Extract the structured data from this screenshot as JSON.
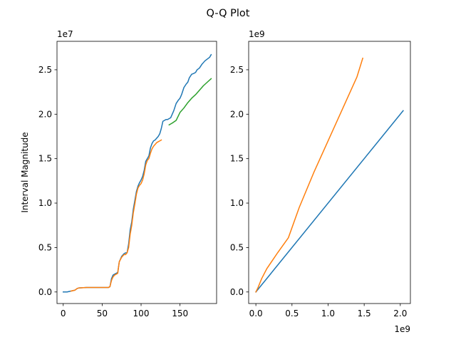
{
  "figure": {
    "title": "Q-Q Plot"
  },
  "colors": {
    "blue": "#1f77b4",
    "orange": "#ff7f0e",
    "green": "#2ca02c"
  },
  "chart_data": [
    {
      "type": "line",
      "ylabel": "Interval Magnitude",
      "xlabel": "",
      "y_offset_label": "1e7",
      "x_offset_label": "",
      "xlim": [
        -8,
        197
      ],
      "ylim": [
        -1.3,
        28.2
      ],
      "xticks": [
        0,
        50,
        100,
        150
      ],
      "xtick_labels": [
        "0",
        "50",
        "100",
        "150"
      ],
      "yticks": [
        0,
        5,
        10,
        15,
        20,
        25
      ],
      "ytick_labels": [
        "0.0",
        "0.5",
        "1.0",
        "1.5",
        "2.0",
        "2.5"
      ],
      "series": [
        {
          "color": "blue",
          "x": [
            0,
            5,
            10,
            15,
            18,
            20,
            30,
            40,
            50,
            58,
            60,
            62,
            64,
            66,
            70,
            72,
            75,
            78,
            80,
            82,
            84,
            86,
            88,
            90,
            92,
            94,
            96,
            98,
            100,
            102,
            104,
            106,
            108,
            110,
            112,
            114,
            116,
            118,
            120,
            122,
            124,
            126,
            128,
            130,
            132,
            134,
            136,
            138,
            140,
            142,
            145,
            148,
            150,
            152,
            155,
            158,
            160,
            162,
            165,
            168,
            170,
            172,
            175,
            178,
            180,
            182,
            185,
            188,
            190
          ],
          "y": [
            0.0,
            0.0,
            0.1,
            0.2,
            0.4,
            0.45,
            0.5,
            0.5,
            0.5,
            0.5,
            0.6,
            1.5,
            1.9,
            2.0,
            2.2,
            3.4,
            4.0,
            4.3,
            4.4,
            4.4,
            5.4,
            7.0,
            7.9,
            9.3,
            10.3,
            11.3,
            11.9,
            12.3,
            12.6,
            13.0,
            13.7,
            14.7,
            15.0,
            15.3,
            16.2,
            16.7,
            17.0,
            17.1,
            17.3,
            17.5,
            17.8,
            18.4,
            19.2,
            19.3,
            19.4,
            19.4,
            19.5,
            19.6,
            20.0,
            20.4,
            21.2,
            21.6,
            21.8,
            22.2,
            23.0,
            23.4,
            23.6,
            24.1,
            24.5,
            24.6,
            24.7,
            25.0,
            25.2,
            25.6,
            25.8,
            26.0,
            26.2,
            26.4,
            26.7
          ]
        },
        {
          "color": "orange",
          "x": [
            10,
            15,
            18,
            20,
            30,
            40,
            50,
            58,
            60,
            62,
            64,
            66,
            70,
            72,
            75,
            78,
            80,
            82,
            84,
            86,
            88,
            90,
            92,
            94,
            96,
            98,
            100,
            102,
            104,
            106,
            108,
            110,
            112,
            114,
            116,
            118,
            120,
            122,
            124,
            126
          ],
          "y": [
            0.1,
            0.2,
            0.4,
            0.45,
            0.5,
            0.5,
            0.5,
            0.5,
            0.6,
            1.3,
            1.7,
            1.9,
            2.1,
            3.4,
            3.9,
            4.2,
            4.2,
            4.4,
            5.0,
            6.5,
            7.5,
            8.9,
            9.9,
            11.0,
            11.7,
            12.0,
            12.2,
            12.6,
            13.3,
            14.3,
            14.8,
            15.0,
            15.6,
            16.1,
            16.4,
            16.6,
            16.8,
            16.9,
            17.0,
            17.1
          ]
        },
        {
          "color": "green",
          "x": [
            136,
            140,
            145,
            150,
            155,
            160,
            165,
            170,
            175,
            180,
            185,
            190
          ],
          "y": [
            18.8,
            19.0,
            19.3,
            20.2,
            20.7,
            21.3,
            21.8,
            22.2,
            22.7,
            23.2,
            23.6,
            24.0
          ]
        }
      ]
    },
    {
      "type": "line",
      "ylabel": "",
      "xlabel": "",
      "y_offset_label": "1e9",
      "x_offset_label": "1e9",
      "xlim": [
        -0.1,
        2.14
      ],
      "ylim": [
        -0.13,
        2.82
      ],
      "xticks": [
        0,
        0.5,
        1.0,
        1.5,
        2.0
      ],
      "xtick_labels": [
        "0.0",
        "0.5",
        "1.0",
        "1.5",
        "2.0"
      ],
      "yticks": [
        0,
        0.5,
        1.0,
        1.5,
        2.0,
        2.5
      ],
      "ytick_labels": [
        "0.0",
        "0.5",
        "1.0",
        "1.5",
        "2.0",
        "2.5"
      ],
      "series": [
        {
          "color": "blue",
          "x": [
            0,
            2.04
          ],
          "y": [
            0,
            2.04
          ]
        },
        {
          "color": "orange",
          "x": [
            0,
            0.03,
            0.08,
            0.15,
            0.3,
            0.45,
            0.6,
            0.8,
            1.0,
            1.2,
            1.4,
            1.48
          ],
          "y": [
            0,
            0.05,
            0.15,
            0.26,
            0.44,
            0.61,
            0.95,
            1.34,
            1.7,
            2.06,
            2.42,
            2.63
          ]
        }
      ]
    }
  ]
}
